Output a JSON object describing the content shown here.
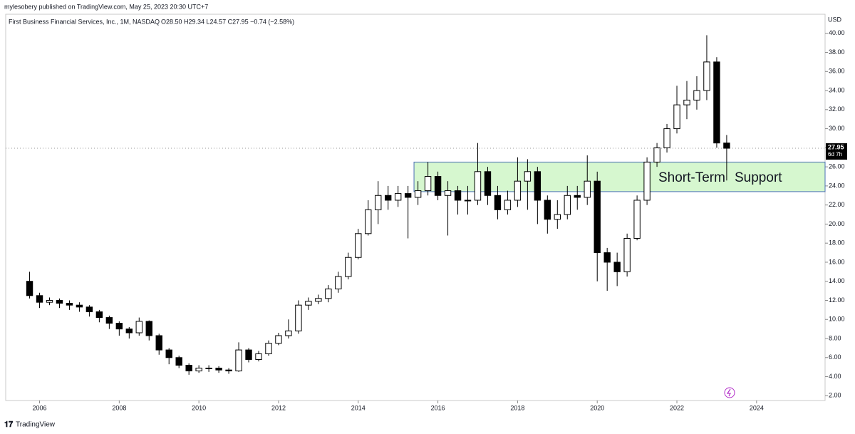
{
  "publisher": "mylesobery published on TradingView.com, May 25, 2023 20:30 UTC+7",
  "footer": "TradingView",
  "chart_data": {
    "type": "candlestick",
    "title": "First Business Financial Services, Inc., 1M, NASDAQ",
    "ohlc_header": "O28.50 H29.34 L24.57 C27.95 −0.74 (−2.58%)",
    "y_axis_label": "USD",
    "last_price": 27.95,
    "countdown": "6d 7h",
    "annotations": [
      "Short-Term",
      "Support"
    ],
    "zone": {
      "x": 2015.4,
      "ylim": [
        23.4,
        26.5
      ],
      "color": "#d6f7cf"
    },
    "up_color": "#ffffff",
    "down_color": "#000000",
    "x": [
      2005.75,
      2006,
      2006.25,
      2006.5,
      2006.75,
      2007,
      2007.25,
      2007.5,
      2007.75,
      2008,
      2008.25,
      2008.5,
      2008.75,
      2009,
      2009.25,
      2009.5,
      2009.75,
      2010,
      2010.25,
      2010.5,
      2010.75,
      2011,
      2011.25,
      2011.5,
      2011.75,
      2012,
      2012.25,
      2012.5,
      2012.75,
      2013,
      2013.25,
      2013.5,
      2013.75,
      2014,
      2014.25,
      2014.5,
      2014.75,
      2015,
      2015.25,
      2015.5,
      2015.75,
      2016,
      2016.25,
      2016.5,
      2016.75,
      2017,
      2017.25,
      2017.5,
      2017.75,
      2018,
      2018.25,
      2018.5,
      2018.75,
      2019,
      2019.25,
      2019.5,
      2019.75,
      2020,
      2020.25,
      2020.5,
      2020.75,
      2021,
      2021.25,
      2021.5,
      2021.75,
      2022,
      2022.25,
      2022.5,
      2022.75,
      2023,
      2023.25
    ],
    "open": [
      14.0,
      12.5,
      11.8,
      12.0,
      11.7,
      11.5,
      11.3,
      10.8,
      10.2,
      9.6,
      9.0,
      8.6,
      9.8,
      8.3,
      6.8,
      6.0,
      5.2,
      4.6,
      4.9,
      4.9,
      4.7,
      4.6,
      6.8,
      5.8,
      6.4,
      7.5,
      8.3,
      8.8,
      11.5,
      11.9,
      12.2,
      13.2,
      14.5,
      16.5,
      19.0,
      21.5,
      23.0,
      22.5,
      23.2,
      22.8,
      23.5,
      25.0,
      23.0,
      23.5,
      22.5,
      22.5,
      25.5,
      23.0,
      21.5,
      22.5,
      24.5,
      25.5,
      22.5,
      20.5,
      21.0,
      23.0,
      22.8,
      24.5,
      17.0,
      16.0,
      15.0,
      18.5,
      22.5,
      26.5,
      28.0,
      30.0,
      32.5,
      33.0,
      34.0,
      37.0,
      28.5
    ],
    "high": [
      15.0,
      12.8,
      12.3,
      12.2,
      12.0,
      11.8,
      11.5,
      11.0,
      10.4,
      9.8,
      9.2,
      10.2,
      9.9,
      8.5,
      7.0,
      6.2,
      5.4,
      5.2,
      5.2,
      5.1,
      4.9,
      7.6,
      7.0,
      6.7,
      7.8,
      8.6,
      10.0,
      12.0,
      12.3,
      12.6,
      13.6,
      15.0,
      17.0,
      19.5,
      22.5,
      24.5,
      24.0,
      24.0,
      24.0,
      24.5,
      26.5,
      25.5,
      24.5,
      24.0,
      24.0,
      28.5,
      26.0,
      24.0,
      23.5,
      27.0,
      26.8,
      26.0,
      23.0,
      22.5,
      24.0,
      24.0,
      27.2,
      25.5,
      17.5,
      17.0,
      19.0,
      23.0,
      27.0,
      28.5,
      30.5,
      34.5,
      35.0,
      35.5,
      39.8,
      37.5,
      29.34
    ],
    "low": [
      12.2,
      11.2,
      11.5,
      11.2,
      11.0,
      10.8,
      10.3,
      9.7,
      9.0,
      8.3,
      8.0,
      8.3,
      7.8,
      6.3,
      5.3,
      4.9,
      4.2,
      4.4,
      4.5,
      4.4,
      4.3,
      4.5,
      5.5,
      5.6,
      6.2,
      7.3,
      8.0,
      8.5,
      11.0,
      11.6,
      11.8,
      12.8,
      14.2,
      16.3,
      18.8,
      20.0,
      21.5,
      21.8,
      18.5,
      22.0,
      23.0,
      22.5,
      18.8,
      21.0,
      21.0,
      22.0,
      22.0,
      20.5,
      21.0,
      21.8,
      21.5,
      20.0,
      19.0,
      19.5,
      20.5,
      21.5,
      22.0,
      14.0,
      13.0,
      13.5,
      14.5,
      18.3,
      22.0,
      26.0,
      27.5,
      29.5,
      31.0,
      32.0,
      33.0,
      28.0,
      24.57
    ],
    "close": [
      12.5,
      11.8,
      12.0,
      11.7,
      11.5,
      11.3,
      10.8,
      10.2,
      9.6,
      9.0,
      8.6,
      9.8,
      8.3,
      6.8,
      6.0,
      5.2,
      4.6,
      4.9,
      4.9,
      4.7,
      4.6,
      6.8,
      5.8,
      6.4,
      7.5,
      8.3,
      8.8,
      11.5,
      11.9,
      12.2,
      13.2,
      14.5,
      16.5,
      19.0,
      21.5,
      23.0,
      22.5,
      23.2,
      22.8,
      23.5,
      25.0,
      23.0,
      23.5,
      22.5,
      22.5,
      25.5,
      23.0,
      21.5,
      22.5,
      24.5,
      25.5,
      22.5,
      20.5,
      21.0,
      23.0,
      22.8,
      24.5,
      17.0,
      16.0,
      15.0,
      18.5,
      22.5,
      26.5,
      28.0,
      30.0,
      32.5,
      33.0,
      34.0,
      37.0,
      28.5,
      27.95
    ],
    "xlim": [
      2005.15,
      2025.72
    ],
    "xticks": [
      2006,
      2008,
      2010,
      2012,
      2014,
      2016,
      2018,
      2020,
      2022,
      2024
    ],
    "ylim": [
      1.5,
      42.0
    ],
    "yticks": [
      {
        "value": 2,
        "label": "2.00"
      },
      {
        "value": 4,
        "label": "4.00"
      },
      {
        "value": 6,
        "label": "6.00"
      },
      {
        "value": 8,
        "label": "8.00"
      },
      {
        "value": 10,
        "label": "10.00"
      },
      {
        "value": 12,
        "label": "12.00"
      },
      {
        "value": 14,
        "label": "14.00"
      },
      {
        "value": 16,
        "label": "16.00"
      },
      {
        "value": 18,
        "label": "18.00"
      },
      {
        "value": 20,
        "label": "20.00"
      },
      {
        "value": 22,
        "label": "22.00"
      },
      {
        "value": 24,
        "label": "24.00"
      },
      {
        "value": 26,
        "label": "26.00"
      },
      {
        "value": 28,
        "label": "28.00"
      },
      {
        "value": 30,
        "label": "30.00"
      },
      {
        "value": 32,
        "label": "32.00"
      },
      {
        "value": 34,
        "label": "34.00"
      },
      {
        "value": 36,
        "label": "36.00"
      },
      {
        "value": 38,
        "label": "38.00"
      },
      {
        "value": 40,
        "label": "40.00"
      }
    ]
  }
}
